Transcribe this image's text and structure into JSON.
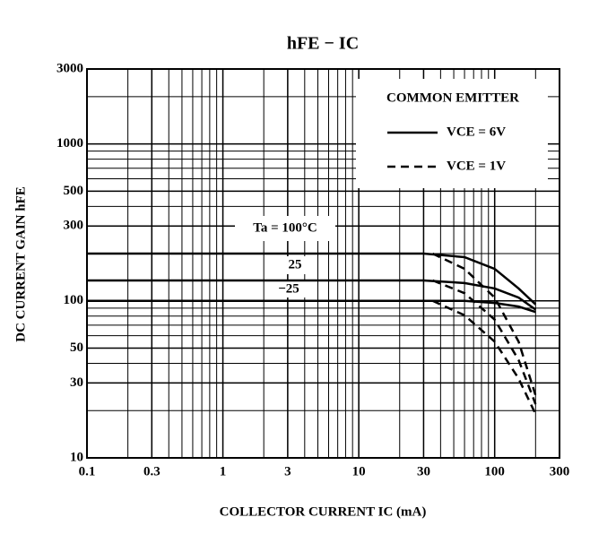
{
  "chart_data": {
    "type": "line",
    "title": "hFE − IC",
    "x_label": "COLLECTOR CURRENT  IC  (mA)",
    "y_label": "DC CURRENT GAIN  hFE",
    "xlim": [
      0.1,
      300
    ],
    "ylim": [
      10,
      3000
    ],
    "log_x": true,
    "log_y": true,
    "grid": true,
    "xticks": [
      0.1,
      0.3,
      1,
      3,
      10,
      30,
      100,
      300
    ],
    "yticks": [
      10,
      30,
      50,
      100,
      300,
      500,
      1000,
      3000
    ],
    "legend_title": "COMMON EMITTER",
    "legend_position": "upper right",
    "series": [
      {
        "name": "VCE = 6V",
        "color": "#000000",
        "dash": false,
        "x": [
          0.1,
          30,
          60,
          100,
          150,
          200
        ],
        "lines": [
          [
            200,
            200,
            190,
            160,
            120,
            95
          ],
          [
            135,
            135,
            130,
            120,
            105,
            88
          ],
          [
            100,
            100,
            100,
            97,
            92,
            85
          ]
        ]
      },
      {
        "name": "VCE = 1V",
        "color": "#000000",
        "dash": true,
        "x": [
          35,
          60,
          100,
          150,
          200
        ],
        "lines": [
          [
            200,
            160,
            105,
            55,
            25
          ],
          [
            135,
            112,
            76,
            42,
            22
          ],
          [
            100,
            81,
            55,
            32,
            19
          ]
        ]
      }
    ],
    "annotations": [
      "Ta = 100°C",
      "25",
      "−25"
    ]
  }
}
